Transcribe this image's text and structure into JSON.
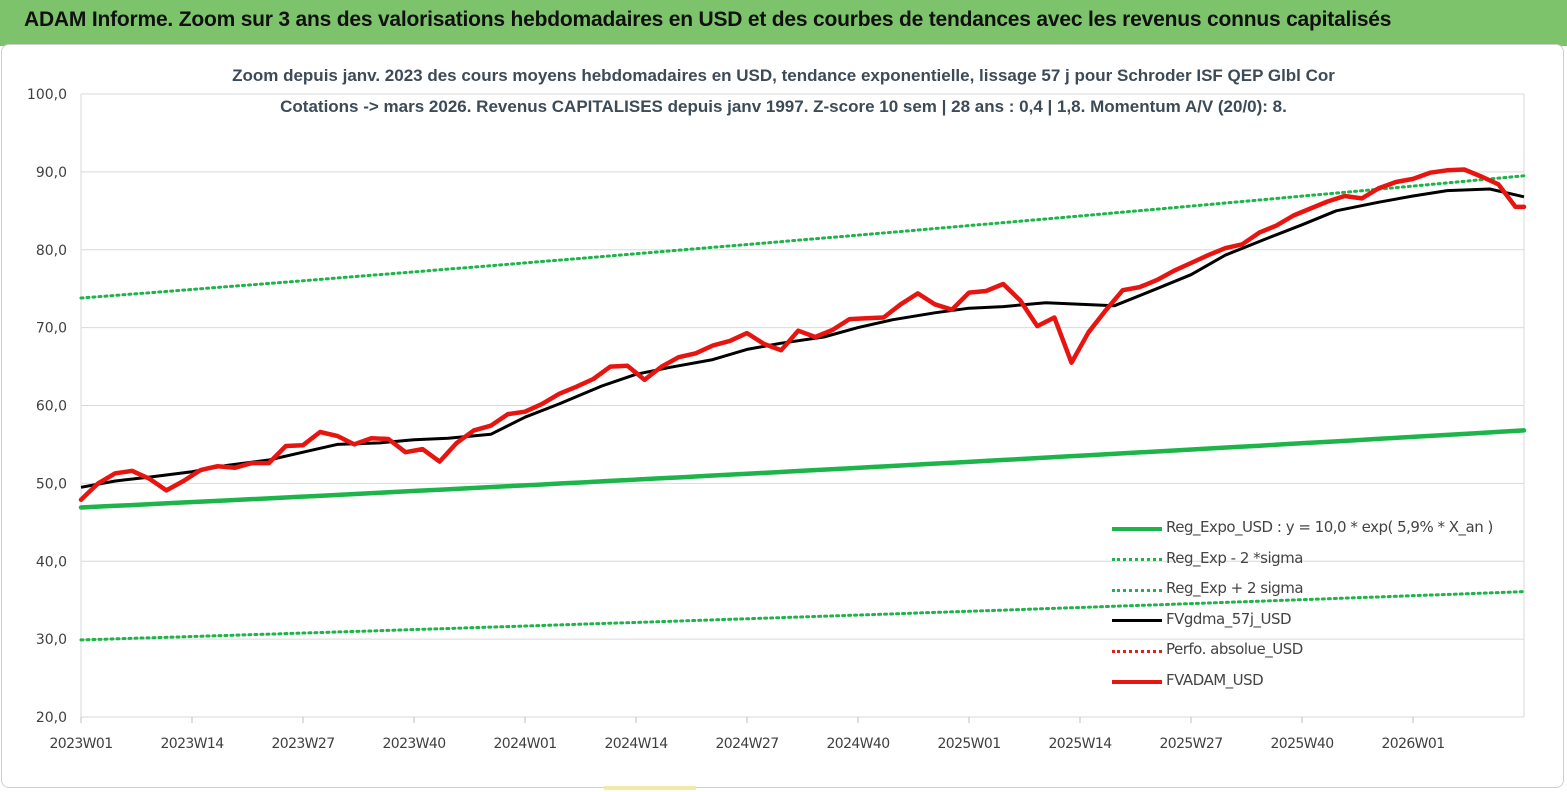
{
  "page": {
    "banner_title": "ADAM Informe. Zoom sur 3 ans des valorisations hebdomadaires en USD et des courbes de tendances avec les revenus connus capitalisés"
  },
  "chart_data": {
    "type": "line",
    "title": "Zoom depuis janv. 2023 des cours moyens hebdomadaires en USD, tendance exponentielle, lissage 57 j pour Schroder ISF QEP Glbl Cor",
    "subtitle": "Cotations -> mars 2026. Revenus CAPITALISES depuis janv 1997. Z-score 10 sem | 28 ans : 0,4 | 1,8. Momentum A/V (20/0): 8.",
    "xlabel": "",
    "ylabel": "",
    "ylim": [
      20,
      100
    ],
    "y_ticks": [
      "100,0",
      "90,0",
      "80,0",
      "70,0",
      "60,0",
      "50,0",
      "40,0",
      "30,0",
      "20,0"
    ],
    "x_ticks": [
      "2023W01",
      "2023W14",
      "2023W27",
      "2023W40",
      "2024W01",
      "2024W14",
      "2024W27",
      "2024W40",
      "2025W01",
      "2025W14",
      "2025W27",
      "2025W40",
      "2026W01"
    ],
    "x_range_weeks": [
      0,
      169
    ],
    "grid": "horizontal",
    "legend_position": "bottom-right",
    "colors": {
      "trend": "#1db44a",
      "band": "#1db44a",
      "smooth": "#000000",
      "absolute": "#e0201b",
      "price": "#e8140f"
    },
    "series": [
      {
        "name": "Reg_Expo_USD : y = 10,0 * exp( 5,9% *  X_an )",
        "style": "solid-thick",
        "x": [
          0,
          169
        ],
        "values": [
          46.9,
          56.8
        ]
      },
      {
        "name": "Reg_Exp - 2 *sigma",
        "style": "dotted",
        "x": [
          0,
          169
        ],
        "values": [
          29.9,
          36.1
        ]
      },
      {
        "name": "Reg_Exp + 2 sigma",
        "style": "dotted",
        "x": [
          0,
          169
        ],
        "values": [
          73.8,
          89.5
        ]
      },
      {
        "name": "FVgdma_57j_USD",
        "style": "solid",
        "x": [
          0,
          4,
          8,
          13,
          17,
          22,
          26,
          30,
          35,
          39,
          43,
          48,
          52,
          56,
          61,
          65,
          69,
          74,
          78,
          82,
          87,
          91,
          95,
          100,
          104,
          108,
          113,
          117,
          121,
          126,
          130,
          134,
          139,
          143,
          147,
          152,
          156,
          160,
          165,
          169
        ],
        "values": [
          49.5,
          50.3,
          50.8,
          51.5,
          52.3,
          53.0,
          54.0,
          55.0,
          55.2,
          55.6,
          55.8,
          56.3,
          58.5,
          60.2,
          62.5,
          64.0,
          64.9,
          65.9,
          67.2,
          68.0,
          68.8,
          70.0,
          71.0,
          71.9,
          72.5,
          72.7,
          73.2,
          73.0,
          72.8,
          75.0,
          76.8,
          79.3,
          81.5,
          83.2,
          85.0,
          86.1,
          86.9,
          87.6,
          87.8,
          86.8
        ]
      },
      {
        "name": "Perfo. absolue_USD",
        "style": "dotted",
        "x": [],
        "values": []
      },
      {
        "name": "FVADAM_USD",
        "style": "solid-thick",
        "x": [
          0,
          2,
          4,
          6,
          8,
          10,
          12,
          14,
          16,
          18,
          20,
          22,
          24,
          26,
          28,
          30,
          32,
          34,
          36,
          38,
          40,
          42,
          44,
          46,
          48,
          50,
          52,
          54,
          56,
          58,
          60,
          62,
          64,
          66,
          68,
          70,
          72,
          74,
          76,
          78,
          80,
          82,
          84,
          86,
          88,
          90,
          92,
          94,
          96,
          98,
          100,
          102,
          104,
          106,
          108,
          110,
          112,
          114,
          116,
          118,
          120,
          122,
          124,
          126,
          128,
          130,
          132,
          134,
          136,
          138,
          140,
          142,
          144,
          146,
          148,
          150,
          152,
          154,
          156,
          158,
          160,
          162,
          164,
          166,
          168,
          169
        ],
        "values": [
          47.9,
          50.0,
          51.3,
          51.6,
          50.6,
          49.1,
          50.3,
          51.7,
          52.2,
          52.0,
          52.6,
          52.6,
          54.8,
          54.9,
          56.6,
          56.1,
          55.0,
          55.8,
          55.7,
          54.0,
          54.4,
          52.8,
          55.2,
          56.8,
          57.4,
          58.9,
          59.2,
          60.2,
          61.5,
          62.4,
          63.4,
          65.0,
          65.1,
          63.3,
          65.0,
          66.2,
          66.7,
          67.7,
          68.3,
          69.3,
          67.9,
          67.1,
          69.6,
          68.8,
          69.7,
          71.1,
          71.2,
          71.3,
          73.0,
          74.4,
          73.0,
          72.3,
          74.5,
          74.7,
          75.6,
          73.5,
          70.2,
          71.3,
          65.5,
          69.4,
          72.2,
          74.8,
          75.2,
          76.1,
          77.3,
          78.3,
          79.3,
          80.2,
          80.7,
          82.2,
          83.1,
          84.4,
          85.3,
          86.2,
          86.9,
          86.6,
          87.9,
          88.7,
          89.1,
          89.9,
          90.2,
          90.3,
          89.4,
          88.4,
          85.5,
          85.5
        ]
      }
    ]
  }
}
